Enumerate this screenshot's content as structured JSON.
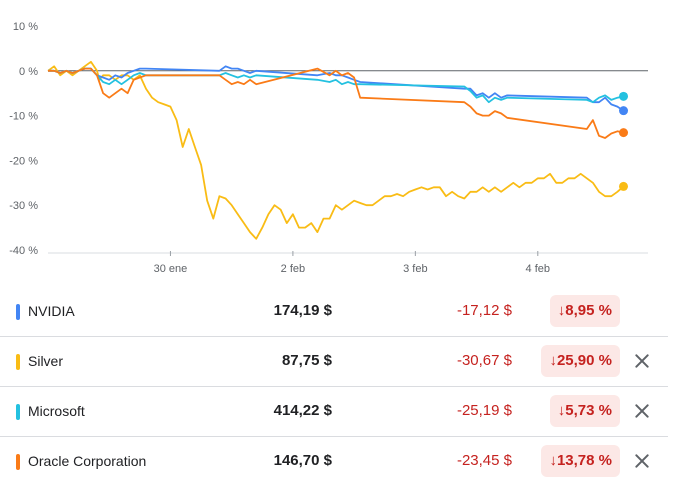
{
  "chart_data": {
    "type": "line",
    "ylim": [
      -40,
      10
    ],
    "yticks": [
      "10 %",
      "0 %",
      "-10 %",
      "-20 %",
      "-30 %",
      "-40 %"
    ],
    "ytick_values": [
      10,
      0,
      -10,
      -20,
      -30,
      -40
    ],
    "xticks": [
      "30 ene",
      "2 feb",
      "3 feb",
      "4 feb"
    ],
    "xtick_positions": [
      1,
      2,
      3,
      4
    ],
    "xlim": [
      0,
      4.9
    ],
    "grid": false,
    "series": [
      {
        "name": "Silver",
        "color": "#f9bc15",
        "x": [
          0,
          0.05,
          0.1,
          0.15,
          0.2,
          0.25,
          0.3,
          0.35,
          0.4,
          0.42,
          0.45,
          0.5,
          0.55,
          0.6,
          0.65,
          0.7,
          0.75,
          0.8,
          0.85,
          0.9,
          0.95,
          1.0,
          1.05,
          1.1,
          1.15,
          1.2,
          1.25,
          1.3,
          1.35,
          1.4,
          1.45,
          1.5,
          1.55,
          1.6,
          1.65,
          1.7,
          1.75,
          1.8,
          1.85,
          1.9,
          1.95,
          2.0,
          2.05,
          2.1,
          2.15,
          2.2,
          2.25,
          2.3,
          2.35,
          2.4,
          2.45,
          2.5,
          2.55,
          2.6,
          2.65,
          2.7,
          2.75,
          2.8,
          2.85,
          2.9,
          2.95,
          3.0,
          3.05,
          3.1,
          3.15,
          3.2,
          3.25,
          3.3,
          3.35,
          3.4,
          3.45,
          3.5,
          3.55,
          3.6,
          3.65,
          3.7,
          3.75,
          3.8,
          3.85,
          3.9,
          3.95,
          4.0,
          4.05,
          4.1,
          4.15,
          4.2,
          4.25,
          4.3,
          4.35,
          4.4,
          4.45,
          4.5,
          4.55,
          4.6,
          4.65,
          4.7
        ],
        "y": [
          0,
          1,
          -1,
          0,
          -1,
          0,
          1,
          2,
          0,
          -2,
          -1,
          -1,
          -2,
          -1,
          -1,
          -2,
          -1,
          -4,
          -6,
          -7,
          -7.5,
          -8,
          -11,
          -17,
          -13,
          -17,
          -21,
          -29,
          -33,
          -28,
          -28.5,
          -30,
          -32,
          -34,
          -36,
          -37.5,
          -35,
          -32,
          -30,
          -31,
          -34,
          -32,
          -35,
          -35,
          -34,
          -36,
          -33,
          -33,
          -30,
          -31,
          -30,
          -29,
          -29.5,
          -30,
          -30,
          -29,
          -28,
          -28,
          -27.5,
          -28,
          -27,
          -26.5,
          -26,
          -26.5,
          -26,
          -26,
          -28,
          -27,
          -28,
          -28.5,
          -27,
          -27,
          -26,
          -27,
          -26,
          -27,
          -26,
          -25,
          -26,
          -25,
          -25,
          -24,
          -24,
          -23,
          -25,
          -25,
          -24,
          -24,
          -23,
          -24,
          -25,
          -27,
          -28,
          -28,
          -27,
          -25.8
        ]
      },
      {
        "name": "NVIDIA",
        "color": "#4285f4",
        "x": [
          0,
          0.05,
          0.1,
          0.15,
          0.2,
          0.25,
          0.3,
          0.35,
          0.4,
          0.45,
          0.5,
          0.55,
          0.6,
          0.65,
          0.7,
          0.75,
          0.8,
          1.4,
          1.45,
          1.5,
          1.55,
          1.6,
          1.65,
          1.7,
          2.2,
          2.3,
          2.35,
          2.4,
          2.45,
          2.5,
          2.55,
          3.4,
          3.45,
          3.5,
          3.55,
          3.6,
          3.65,
          3.7,
          3.75,
          4.4,
          4.45,
          4.5,
          4.55,
          4.6,
          4.65,
          4.7
        ],
        "y": [
          0,
          0,
          -0.5,
          0,
          -0.5,
          0,
          0.5,
          0.5,
          -1,
          -1.5,
          -2,
          -1,
          -1.5,
          -0.5,
          0,
          0.5,
          0.5,
          0,
          1,
          0.5,
          0.5,
          0,
          -0.5,
          0,
          -1,
          -0.5,
          -1,
          -1,
          -1.5,
          -2,
          -2.5,
          -4,
          -4,
          -5.5,
          -5,
          -6,
          -5,
          -6,
          -5.5,
          -6,
          -7,
          -7,
          -6,
          -7.5,
          -8,
          -8.9
        ]
      },
      {
        "name": "Microsoft",
        "color": "#24c1e0",
        "x": [
          0,
          0.05,
          0.1,
          0.15,
          0.2,
          0.25,
          0.3,
          0.35,
          0.4,
          0.45,
          0.5,
          0.55,
          0.6,
          0.65,
          0.7,
          0.75,
          0.8,
          1.4,
          1.45,
          1.5,
          1.55,
          1.6,
          1.65,
          1.7,
          2.2,
          2.3,
          2.35,
          2.4,
          2.45,
          2.5,
          2.55,
          3.4,
          3.45,
          3.5,
          3.55,
          3.6,
          3.65,
          3.7,
          3.75,
          4.4,
          4.45,
          4.5,
          4.55,
          4.6,
          4.65,
          4.7
        ],
        "y": [
          0,
          0,
          -0.5,
          0,
          -0.5,
          0,
          0.5,
          0.5,
          -1,
          -2.5,
          -3,
          -2,
          -3,
          -2,
          -1,
          -0.5,
          -1,
          -1,
          -0.5,
          -1,
          -1.5,
          -1,
          -1.5,
          -1,
          -2,
          -2.5,
          -2,
          -3,
          -2.5,
          -3,
          -3,
          -3.5,
          -4.5,
          -6,
          -5.5,
          -7,
          -6,
          -6.5,
          -6,
          -6.5,
          -7,
          -6,
          -5.5,
          -6.5,
          -6,
          -5.7
        ]
      },
      {
        "name": "Oracle Corporation",
        "color": "#fa7b17",
        "x": [
          0,
          0.05,
          0.1,
          0.15,
          0.2,
          0.25,
          0.3,
          0.35,
          0.4,
          0.45,
          0.5,
          0.55,
          0.6,
          0.65,
          0.7,
          0.75,
          0.8,
          1.4,
          1.45,
          1.5,
          1.55,
          1.6,
          1.65,
          1.7,
          2.2,
          2.3,
          2.35,
          2.4,
          2.45,
          2.5,
          2.55,
          3.4,
          3.45,
          3.5,
          3.55,
          3.6,
          3.65,
          3.7,
          3.75,
          4.4,
          4.45,
          4.5,
          4.55,
          4.6,
          4.65,
          4.7
        ],
        "y": [
          0,
          0,
          -0.5,
          0,
          -0.5,
          0,
          0.5,
          0.5,
          -1,
          -5,
          -6,
          -5,
          -4,
          -5,
          -2,
          -1.5,
          -1,
          -1,
          -2,
          -3,
          -2.5,
          -3,
          -2,
          -3,
          0.5,
          -1,
          0,
          -1,
          -0.5,
          -1.5,
          -6,
          -7,
          -8,
          -9.5,
          -10,
          -10,
          -9,
          -9.5,
          -10.5,
          -13,
          -11,
          -14.5,
          -15,
          -14,
          -13.5,
          -13.8
        ]
      }
    ]
  },
  "rows": [
    {
      "name": "NVIDIA",
      "color": "#4285f4",
      "price": "174,19 $",
      "change": "-17,12 $",
      "pct": "↓8,95 %",
      "removable": false
    },
    {
      "name": "Silver",
      "color": "#f9bc15",
      "price": "87,75 $",
      "change": "-30,67 $",
      "pct": "↓25,90 %",
      "removable": true
    },
    {
      "name": "Microsoft",
      "color": "#24c1e0",
      "price": "414,22 $",
      "change": "-25,19 $",
      "pct": "↓5,73 %",
      "removable": true
    },
    {
      "name": "Oracle Corporation",
      "color": "#fa7b17",
      "price": "146,70 $",
      "change": "-23,45 $",
      "pct": "↓13,78 %",
      "removable": true
    }
  ],
  "icons": {
    "remove": "close-icon"
  }
}
